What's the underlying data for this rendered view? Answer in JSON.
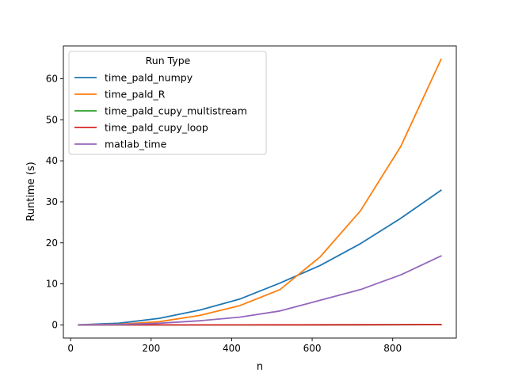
{
  "chart_data": {
    "type": "line",
    "title": "",
    "xlabel": "n",
    "ylabel": "Runtime (s)",
    "xlim": [
      -18,
      958
    ],
    "ylim": [
      -3.2,
      68.0
    ],
    "xticks": [
      0,
      200,
      400,
      600,
      800
    ],
    "yticks": [
      0,
      10,
      20,
      30,
      40,
      50,
      60
    ],
    "grid": false,
    "legend": {
      "title": "Run Type",
      "position": "top-left"
    },
    "x": [
      20,
      120,
      220,
      320,
      420,
      520,
      620,
      720,
      820,
      920
    ],
    "series": [
      {
        "name": "time_pald_numpy",
        "color": "#1f77b4",
        "values": [
          0.02,
          0.4,
          1.6,
          3.6,
          6.3,
          10.2,
          14.5,
          19.8,
          26.0,
          32.8
        ]
      },
      {
        "name": "time_pald_R",
        "color": "#ff7f0e",
        "values": [
          0.02,
          0.15,
          0.8,
          2.3,
          4.7,
          8.6,
          16.6,
          27.8,
          43.5,
          64.7
        ]
      },
      {
        "name": "time_pald_cupy_multistream",
        "color": "#2ca02c",
        "values": [
          0.0,
          0.0,
          0.0,
          0.0,
          0.0,
          0.0,
          0.02,
          0.03,
          0.05,
          0.08
        ]
      },
      {
        "name": "time_pald_cupy_loop",
        "color": "#d62728",
        "values": [
          0.0,
          0.0,
          0.0,
          0.01,
          0.01,
          0.02,
          0.03,
          0.05,
          0.07,
          0.1
        ]
      },
      {
        "name": "matlab_time",
        "color": "#9467bd",
        "values": [
          0.01,
          0.08,
          0.4,
          1.0,
          1.9,
          3.4,
          6.0,
          8.6,
          12.2,
          16.8
        ]
      }
    ]
  }
}
